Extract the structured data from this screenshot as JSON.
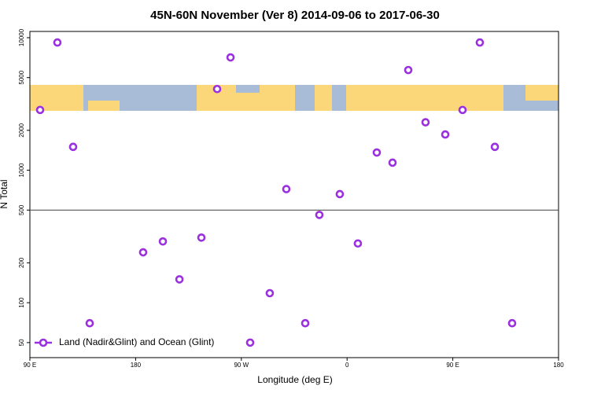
{
  "chart_data": {
    "type": "scatter",
    "title": "45N-60N November (Ver 8)   2014-09-06 to 2017-06-30",
    "x_label": "Longitude (deg E)",
    "y_label": "N Total",
    "series": [
      {
        "name": "Land (Nadir&Glint) and Ocean (Glint)",
        "color": "#9b30e0",
        "x": [
          98.7,
          113.4,
          126.8,
          140.9,
          186.4,
          203.2,
          217.3,
          236,
          249.4,
          260.8,
          277.5,
          294.2,
          308.3,
          324.4,
          336.4,
          353.8,
          369.2,
          385.3,
          398.7,
          412.1,
          426.8,
          443.6,
          458.3,
          473,
          485.8,
          500.5
        ],
        "values": [
          2850,
          9200,
          1500,
          70,
          240,
          290,
          150,
          310,
          4100,
          7100,
          50,
          118,
          720,
          70,
          460,
          660,
          280,
          1360,
          1140,
          5700,
          2300,
          1860,
          2850,
          9200,
          1500,
          70
        ]
      }
    ],
    "xlim": [
      90,
      540
    ],
    "xticks": [
      {
        "value": 90,
        "label": "90 E"
      },
      180,
      {
        "value": 270,
        "label": "90 W"
      },
      {
        "value": 360,
        "label": "0"
      },
      {
        "value": 450,
        "label": "90 E"
      },
      {
        "value": 540,
        "label": "180"
      }
    ],
    "ylim": [
      38.5,
      11150
    ],
    "log_y": true,
    "yticks": [
      50,
      100,
      200,
      500,
      1000,
      2000,
      5000,
      10000
    ],
    "hline": 500,
    "legend": "bottom-left"
  }
}
